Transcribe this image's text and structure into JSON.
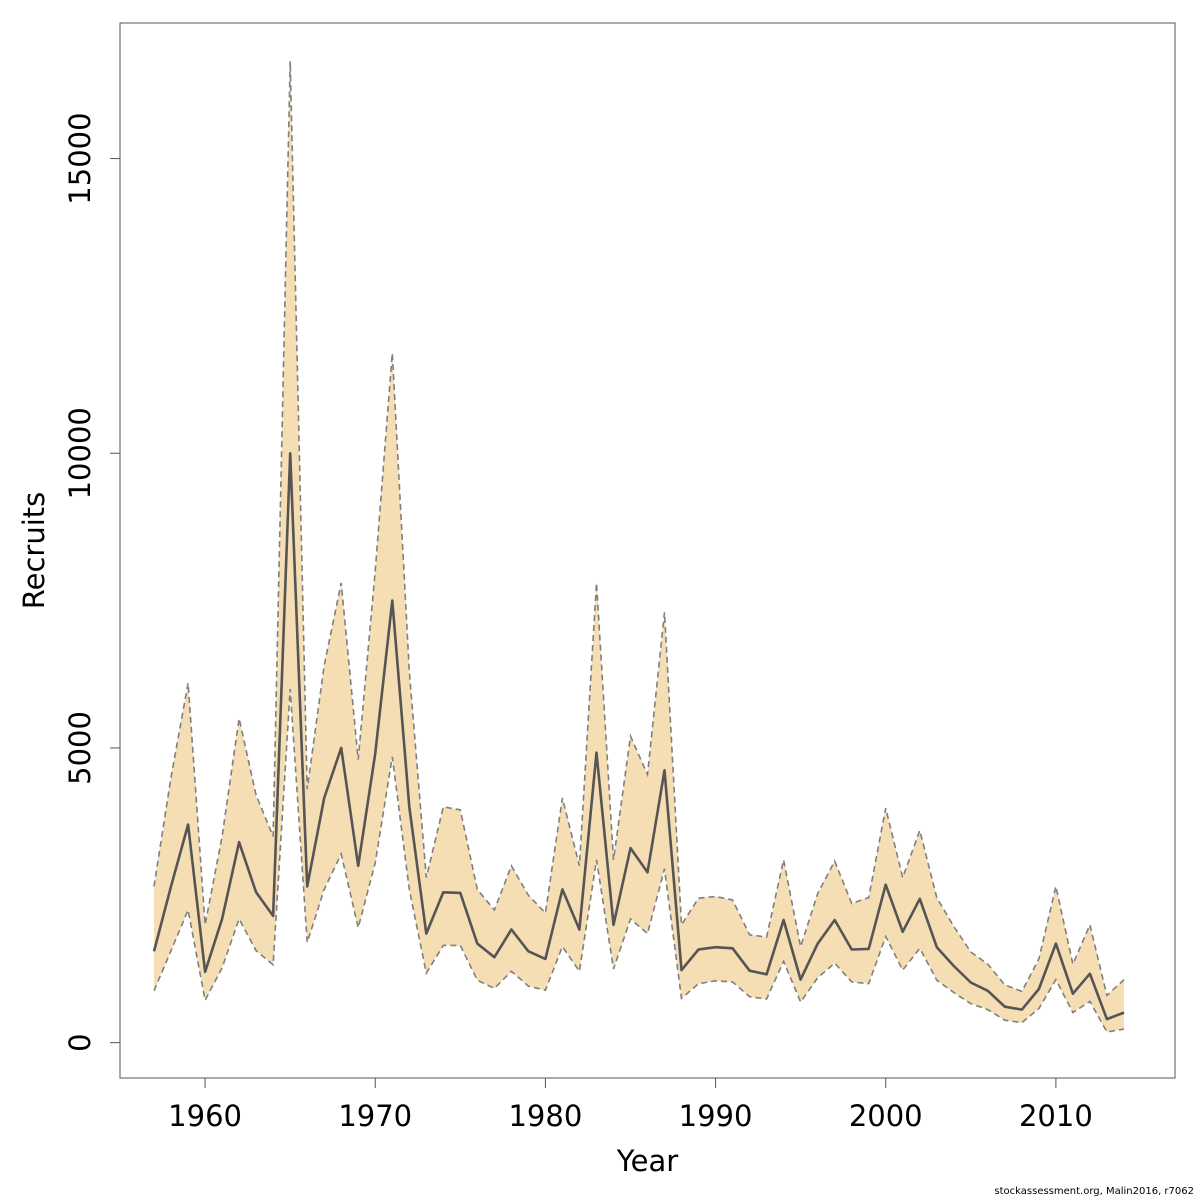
{
  "chart_data": {
    "type": "area",
    "xlabel": "Year",
    "ylabel": "Recruits",
    "xlim": [
      1955,
      2017
    ],
    "ylim": [
      -600,
      17300
    ],
    "x_ticks": [
      1960,
      1970,
      1980,
      1990,
      2000,
      2010
    ],
    "y_ticks": [
      0,
      5000,
      10000,
      15000
    ],
    "grid": false,
    "colors": {
      "band": "#f5deb3",
      "line": "#555555",
      "bounds": "#7f7f7f",
      "axis": "#555555"
    },
    "x": [
      1957,
      1958,
      1959,
      1960,
      1961,
      1962,
      1963,
      1964,
      1965,
      1966,
      1967,
      1968,
      1969,
      1970,
      1971,
      1972,
      1973,
      1974,
      1975,
      1976,
      1977,
      1978,
      1979,
      1980,
      1981,
      1982,
      1983,
      1984,
      1985,
      1986,
      1987,
      1988,
      1989,
      1990,
      1991,
      1992,
      1993,
      1994,
      1995,
      1996,
      1997,
      1998,
      1999,
      2000,
      2001,
      2002,
      2003,
      2004,
      2005,
      2006,
      2007,
      2008,
      2009,
      2010,
      2011,
      2012,
      2013,
      2014
    ],
    "series": [
      {
        "role": "estimate",
        "values": [
          1550,
          2650,
          3700,
          1200,
          2100,
          3400,
          2550,
          2150,
          10000,
          2650,
          4150,
          5000,
          3000,
          4900,
          7500,
          4000,
          1850,
          2550,
          2540,
          1680,
          1450,
          1920,
          1550,
          1420,
          2600,
          1920,
          4920,
          2000,
          3300,
          2890,
          4620,
          1230,
          1580,
          1620,
          1600,
          1220,
          1160,
          2080,
          1070,
          1680,
          2080,
          1580,
          1590,
          2680,
          1880,
          2440,
          1620,
          1300,
          1020,
          880,
          610,
          560,
          910,
          1680,
          830,
          1170,
          400,
          510
        ]
      },
      {
        "role": "upper",
        "values": [
          2650,
          4500,
          6100,
          2000,
          3500,
          5500,
          4200,
          3500,
          16650,
          4300,
          6400,
          7800,
          4800,
          8000,
          11700,
          6300,
          2800,
          4000,
          3950,
          2600,
          2250,
          3000,
          2500,
          2200,
          4150,
          3000,
          7800,
          3100,
          5200,
          4550,
          7300,
          2000,
          2450,
          2480,
          2420,
          1830,
          1790,
          3100,
          1630,
          2530,
          3080,
          2360,
          2460,
          3980,
          2800,
          3600,
          2460,
          1970,
          1540,
          1330,
          980,
          870,
          1420,
          2650,
          1330,
          2000,
          800,
          1070
        ]
      },
      {
        "role": "lower",
        "values": [
          880,
          1560,
          2250,
          720,
          1270,
          2100,
          1560,
          1320,
          6000,
          1700,
          2600,
          3200,
          1950,
          3050,
          4850,
          2600,
          1180,
          1650,
          1650,
          1060,
          920,
          1210,
          960,
          890,
          1630,
          1210,
          3100,
          1250,
          2100,
          1850,
          2950,
          750,
          1000,
          1050,
          1030,
          780,
          740,
          1380,
          690,
          1100,
          1350,
          1030,
          1000,
          1800,
          1230,
          1600,
          1060,
          850,
          660,
          560,
          380,
          340,
          580,
          1070,
          510,
          700,
          180,
          230
        ]
      }
    ]
  },
  "credit": "stockassessment.org, Malin2016, r7062"
}
